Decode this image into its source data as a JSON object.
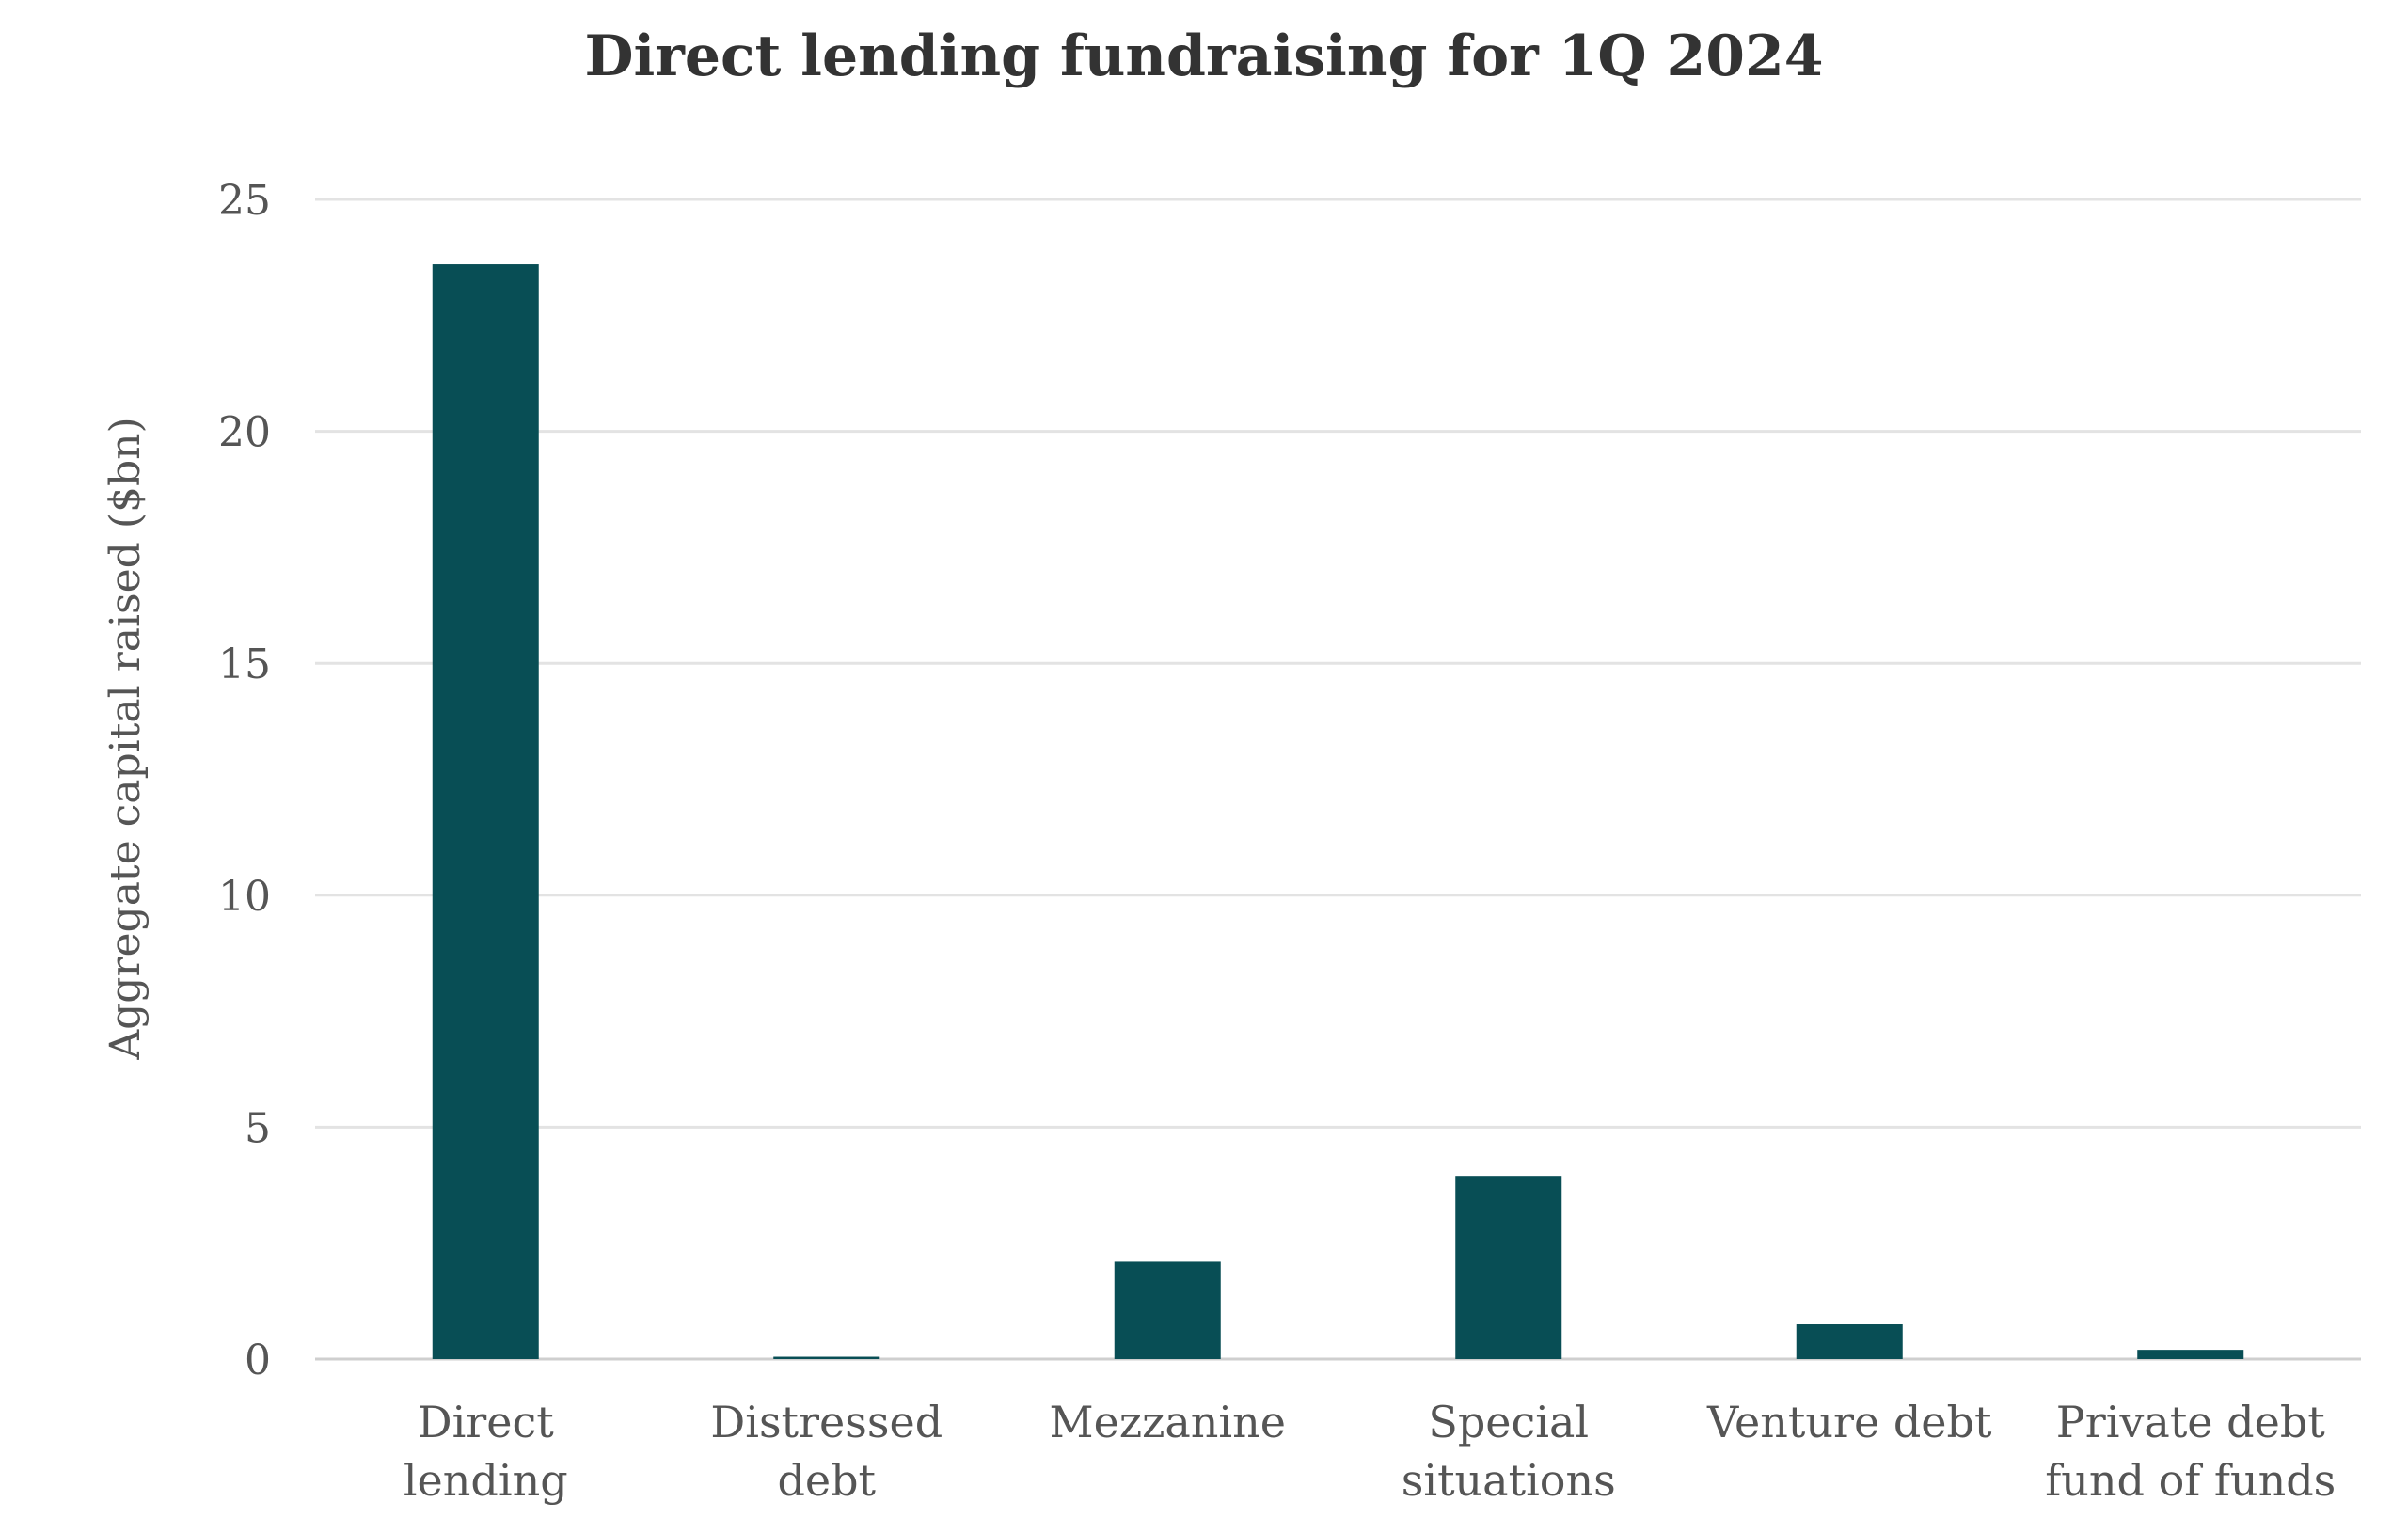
{
  "chart_data": {
    "type": "bar",
    "title": "Direct lending fundraising for 1Q 2024",
    "xlabel": "",
    "ylabel": "Aggregate capital raised ($bn)",
    "ylim": [
      0,
      25
    ],
    "yticks": [
      0,
      5,
      10,
      15,
      20,
      25
    ],
    "grid": true,
    "legend": "none",
    "bar_color": "#084e55",
    "categories": [
      [
        "Direct",
        "lending"
      ],
      [
        "Distressed",
        "debt"
      ],
      [
        "Mezzanine"
      ],
      [
        "Special",
        "situations"
      ],
      [
        "Venture debt"
      ],
      [
        "Private debt",
        "fund of funds"
      ]
    ],
    "values": [
      23.6,
      0.05,
      2.1,
      3.95,
      0.75,
      0.2
    ]
  }
}
